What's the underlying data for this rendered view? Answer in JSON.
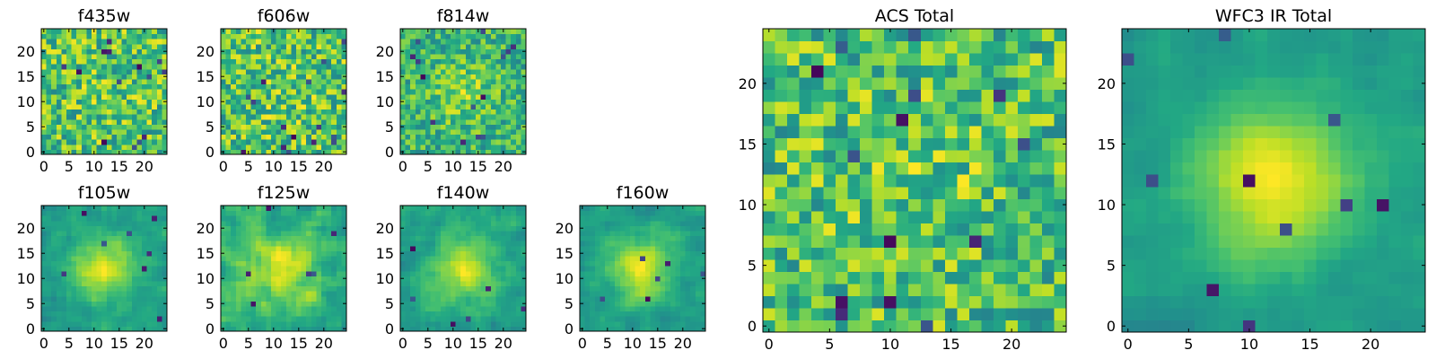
{
  "chart_data": {
    "type": "heatmap",
    "colormap": "viridis",
    "grid": false,
    "panels": [
      {
        "title": "f435w",
        "xticks": [
          "0",
          "5",
          "10",
          "15",
          "20"
        ],
        "yticks": [
          "0",
          "5",
          "10",
          "15",
          "20"
        ],
        "extent": [
          0,
          24
        ],
        "seed": 11,
        "blob": 0.05,
        "smooth": 0,
        "dark_count": 14
      },
      {
        "title": "f606w",
        "xticks": [
          "0",
          "5",
          "10",
          "15",
          "20"
        ],
        "yticks": [
          "0",
          "5",
          "10",
          "15",
          "20"
        ],
        "extent": [
          0,
          24
        ],
        "seed": 23,
        "blob": 0.05,
        "smooth": 0,
        "dark_count": 16
      },
      {
        "title": "f814w",
        "xticks": [
          "0",
          "5",
          "10",
          "15",
          "20"
        ],
        "yticks": [
          "0",
          "5",
          "10",
          "15",
          "20"
        ],
        "extent": [
          0,
          24
        ],
        "seed": 37,
        "blob": 0.25,
        "smooth": 0,
        "dark_count": 14
      },
      {
        "title": "f105w",
        "xticks": [
          "0",
          "5",
          "10",
          "15",
          "20"
        ],
        "yticks": [
          "0",
          "5",
          "10",
          "15",
          "20"
        ],
        "extent": [
          0,
          24
        ],
        "seed": 41,
        "blob": 0.45,
        "smooth": 1,
        "dark_count": 8
      },
      {
        "title": "f125w",
        "xticks": [
          "0",
          "5",
          "10",
          "15",
          "20"
        ],
        "yticks": [
          "0",
          "5",
          "10",
          "15",
          "20"
        ],
        "extent": [
          0,
          24
        ],
        "seed": 53,
        "blob": 0.3,
        "smooth": 1,
        "dark_count": 6
      },
      {
        "title": "f140w",
        "xticks": [
          "0",
          "5",
          "10",
          "15",
          "20"
        ],
        "yticks": [
          "0",
          "5",
          "10",
          "15",
          "20"
        ],
        "extent": [
          0,
          24
        ],
        "seed": 67,
        "blob": 0.4,
        "smooth": 1,
        "dark_count": 6
      },
      {
        "title": "f160w",
        "xticks": [
          "0",
          "5",
          "10",
          "15",
          "20"
        ],
        "yticks": [
          "0",
          "5",
          "10",
          "15",
          "20"
        ],
        "extent": [
          0,
          24
        ],
        "seed": 71,
        "blob": 0.45,
        "smooth": 1,
        "dark_count": 6
      },
      {
        "title": "ACS Total",
        "xticks": [
          "0",
          "5",
          "10",
          "15",
          "20"
        ],
        "yticks": [
          "0",
          "5",
          "10",
          "15",
          "20"
        ],
        "extent": [
          0,
          24
        ],
        "seed": 83,
        "blob": 0.1,
        "smooth": 0,
        "dark_count": 14
      },
      {
        "title": "WFC3 IR Total",
        "xticks": [
          "0",
          "5",
          "10",
          "15",
          "20"
        ],
        "yticks": [
          "0",
          "5",
          "10",
          "15",
          "20"
        ],
        "extent": [
          0,
          24
        ],
        "seed": 97,
        "blob": 0.6,
        "smooth": 1,
        "dark_count": 10
      }
    ]
  }
}
